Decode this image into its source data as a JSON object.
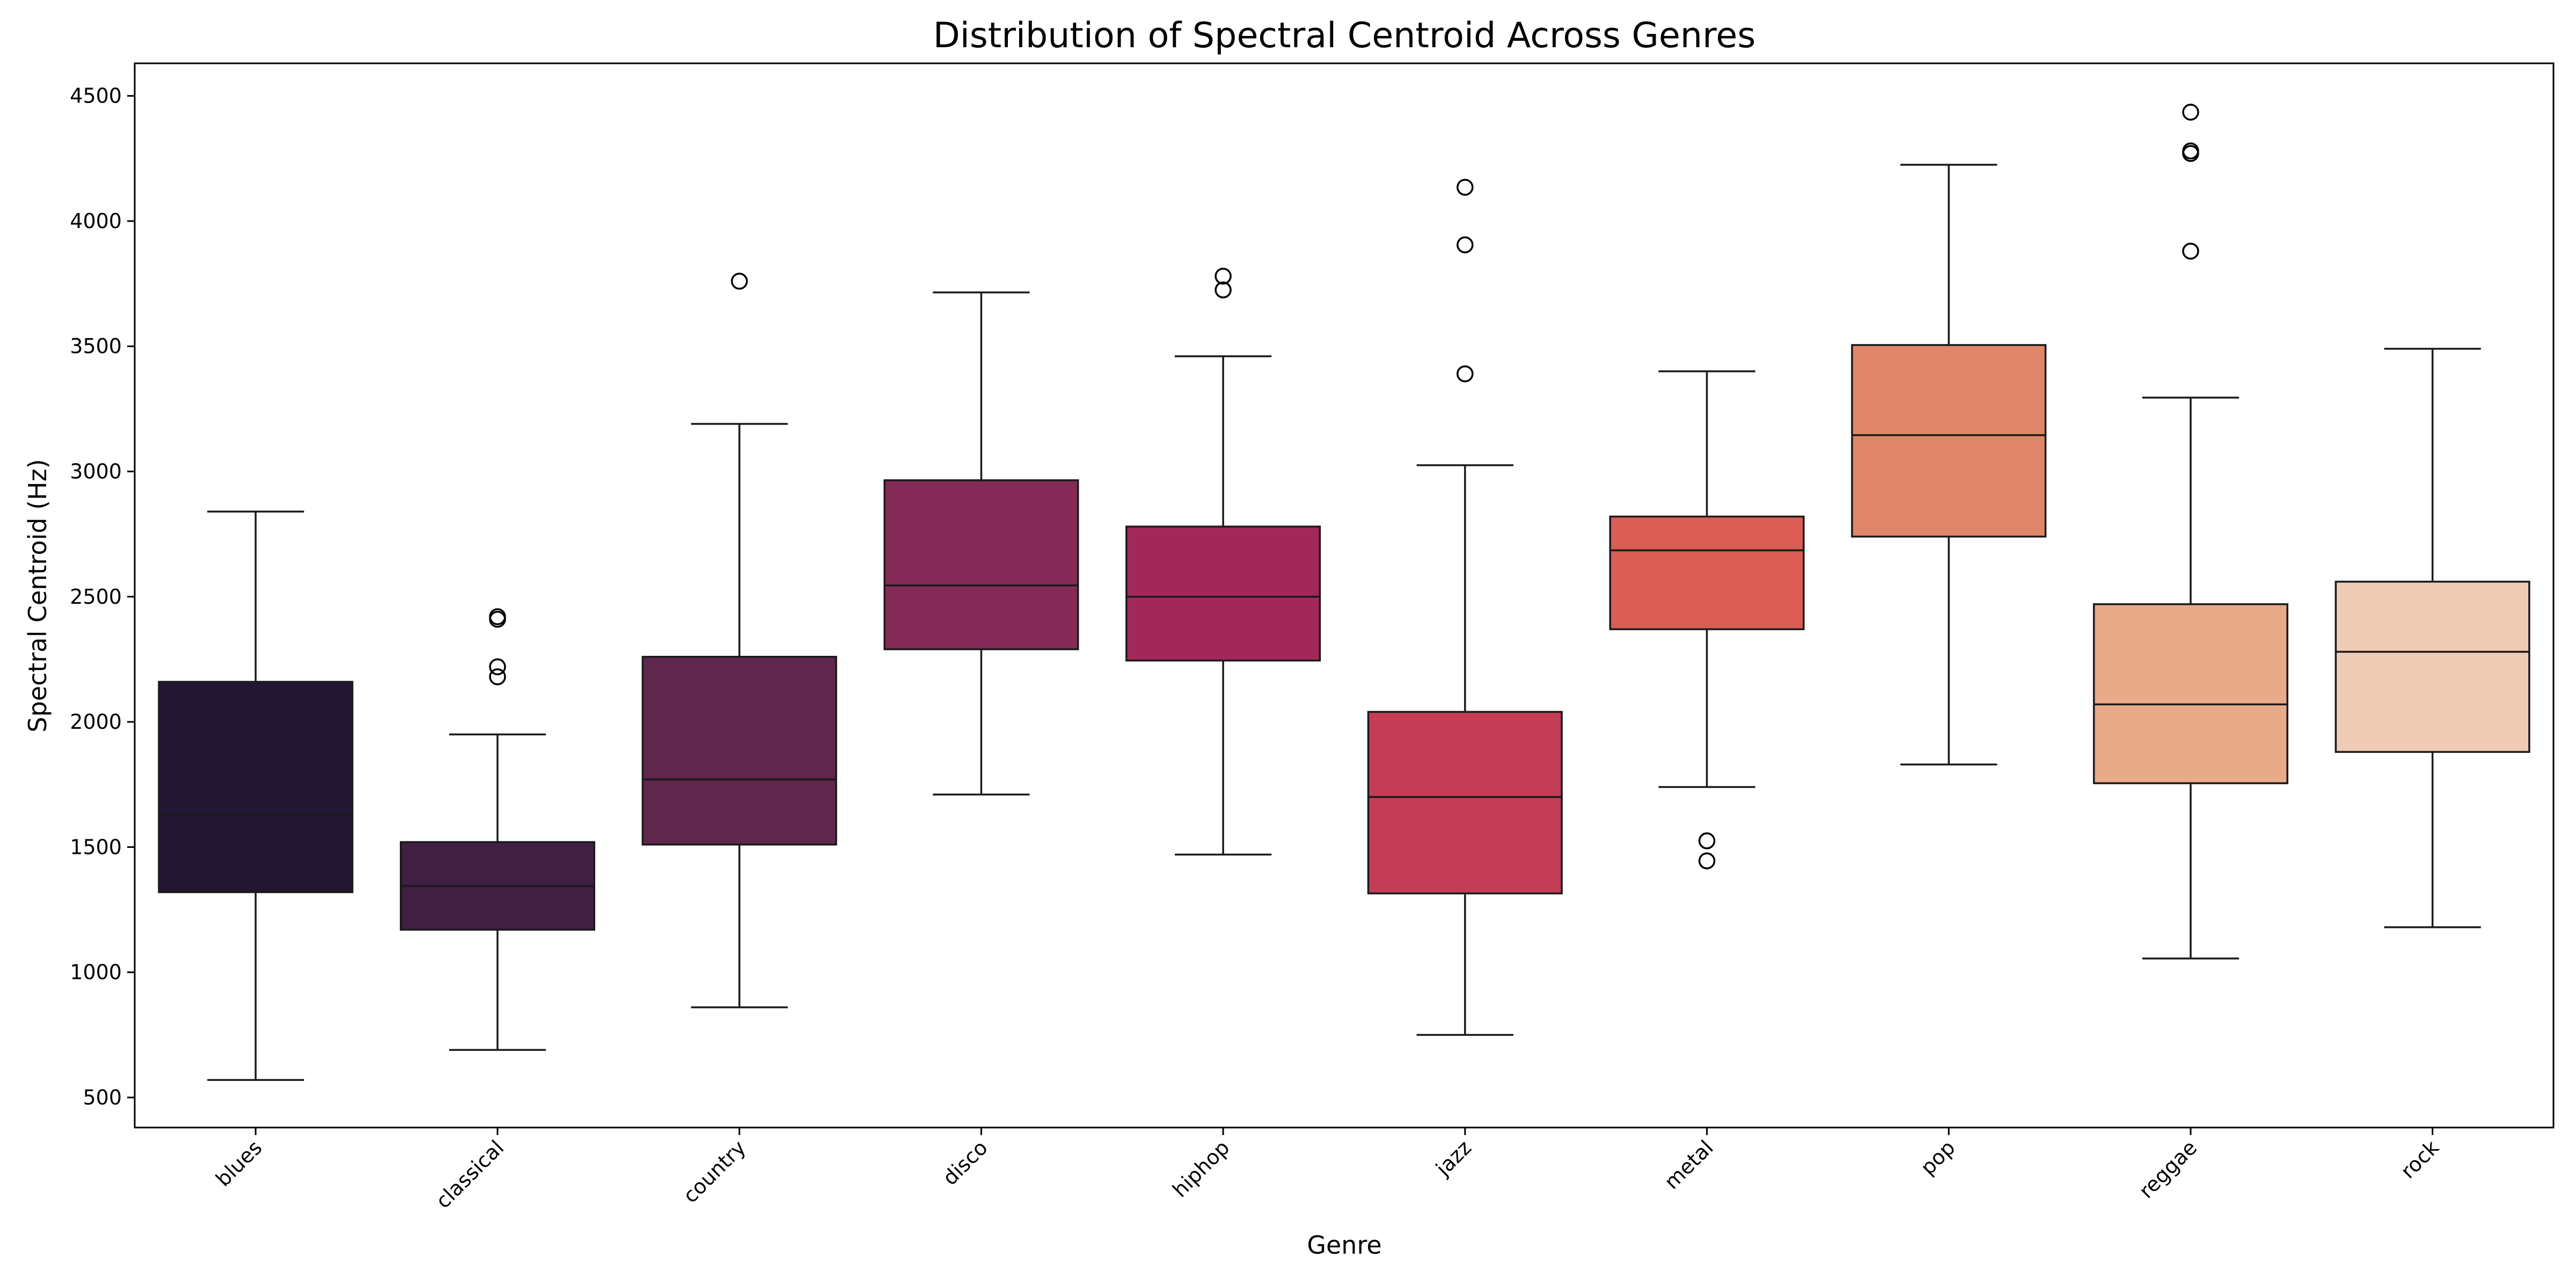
{
  "chart_data": {
    "type": "box",
    "title": "Distribution of Spectral Centroid Across Genres",
    "xlabel": "Genre",
    "ylabel": "Spectral Centroid (Hz)",
    "ylim": [
      380,
      4630
    ],
    "yticks": [
      500,
      1000,
      1500,
      2000,
      2500,
      3000,
      3500,
      4000,
      4500
    ],
    "grid": false,
    "categories": [
      "blues",
      "classical",
      "country",
      "disco",
      "hiphop",
      "jazz",
      "metal",
      "pop",
      "reggae",
      "rock"
    ],
    "boxes": [
      {
        "category": "blues",
        "whisker_low": 570,
        "q1": 1320,
        "median": 1630,
        "q3": 2160,
        "whisker_high": 2840,
        "fliers": [],
        "color": "#221733"
      },
      {
        "category": "classical",
        "whisker_low": 690,
        "q1": 1170,
        "median": 1345,
        "q3": 1520,
        "whisker_high": 1950,
        "fliers": [
          2180,
          2220,
          2410,
          2420
        ],
        "color": "#3f2042"
      },
      {
        "category": "country",
        "whisker_low": 860,
        "q1": 1510,
        "median": 1770,
        "q3": 2260,
        "whisker_high": 3190,
        "fliers": [
          3760
        ],
        "color": "#5f274b"
      },
      {
        "category": "disco",
        "whisker_low": 1710,
        "q1": 2290,
        "median": 2545,
        "q3": 2965,
        "whisker_high": 3715,
        "fliers": [],
        "color": "#832a56"
      },
      {
        "category": "hiphop",
        "whisker_low": 1470,
        "q1": 2245,
        "median": 2500,
        "q3": 2780,
        "whisker_high": 3460,
        "fliers": [
          3725,
          3780
        ],
        "color": "#a3285a"
      },
      {
        "category": "jazz",
        "whisker_low": 750,
        "q1": 1315,
        "median": 1700,
        "q3": 2040,
        "whisker_high": 3025,
        "fliers": [
          3390,
          3905,
          4135
        ],
        "color": "#c33d56"
      },
      {
        "category": "metal",
        "whisker_low": 1740,
        "q1": 2370,
        "median": 2685,
        "q3": 2820,
        "whisker_high": 3400,
        "fliers": [
          1445,
          1525
        ],
        "color": "#db5c52"
      },
      {
        "category": "pop",
        "whisker_low": 1830,
        "q1": 2740,
        "median": 3145,
        "q3": 3505,
        "whisker_high": 4225,
        "fliers": [],
        "color": "#e28669"
      },
      {
        "category": "reggae",
        "whisker_low": 1055,
        "q1": 1755,
        "median": 2070,
        "q3": 2470,
        "whisker_high": 3295,
        "fliers": [
          3880,
          4270,
          4280,
          4435
        ],
        "color": "#e9aa89"
      },
      {
        "category": "rock",
        "whisker_low": 1180,
        "q1": 1880,
        "median": 2280,
        "q3": 2560,
        "whisker_high": 3490,
        "fliers": [],
        "color": "#f0cbb3"
      }
    ]
  }
}
